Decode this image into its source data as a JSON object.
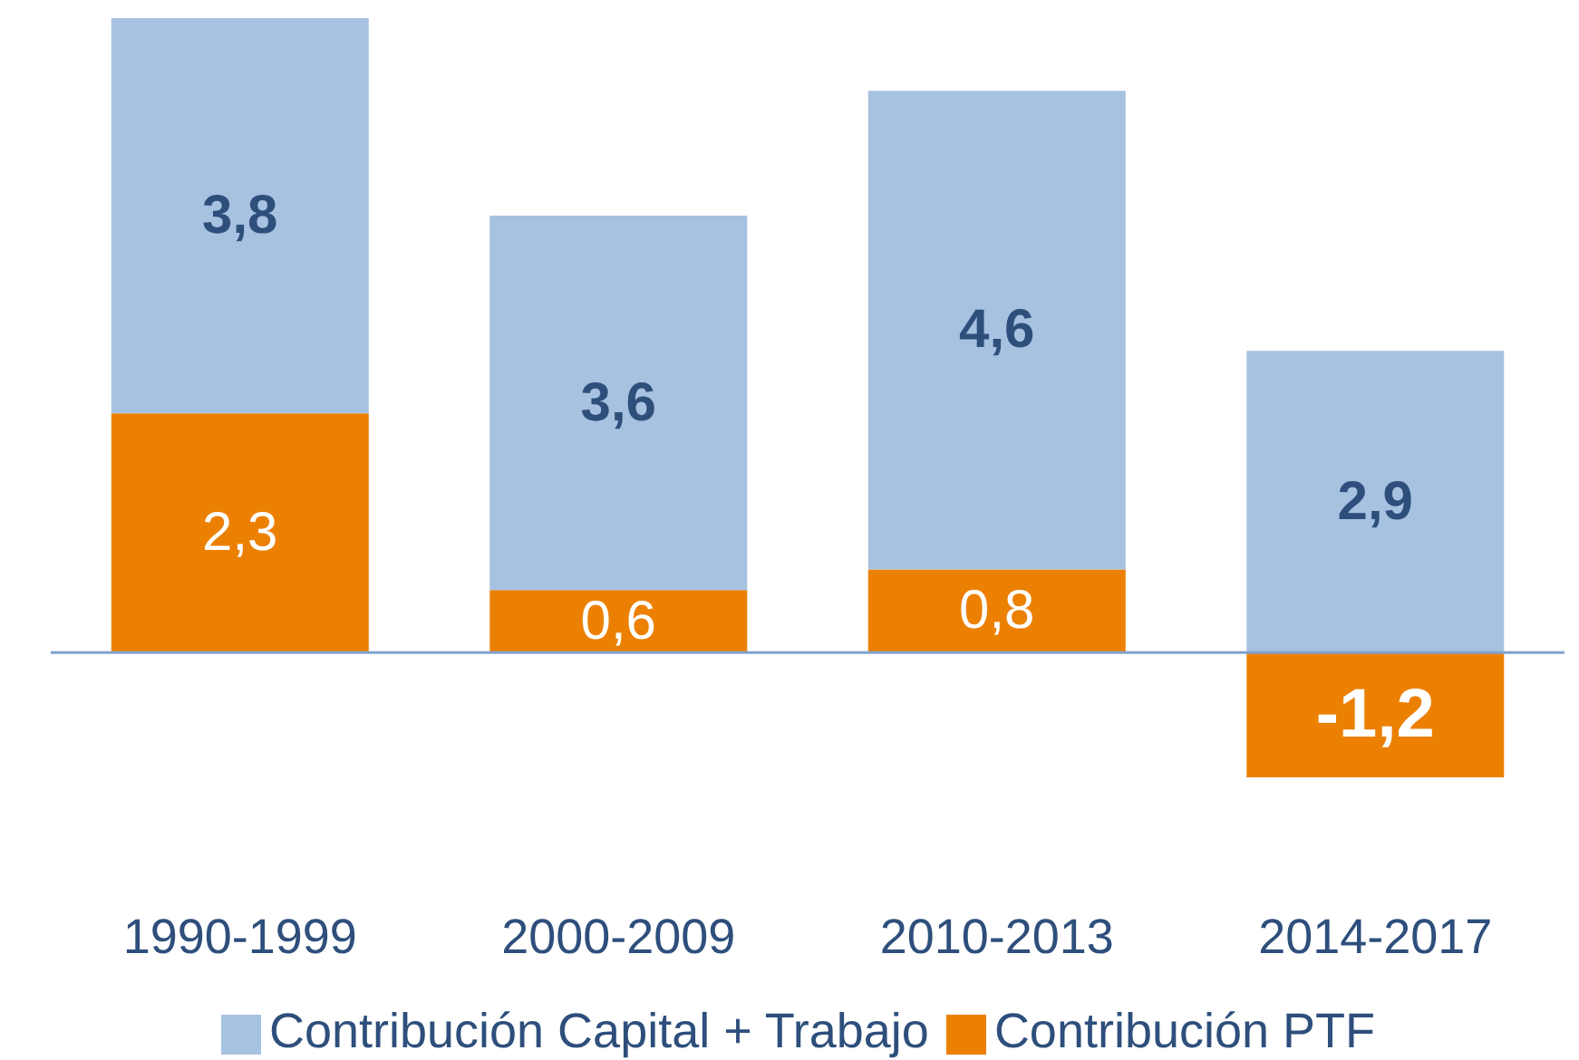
{
  "chart_data": {
    "type": "bar",
    "stacked": true,
    "categories": [
      "1990-1999",
      "2000-2009",
      "2010-2013",
      "2014-2017"
    ],
    "series": [
      {
        "name": "Contribución PTF",
        "color": "#ec8003",
        "values": [
          2.3,
          0.6,
          0.8,
          -1.2
        ],
        "value_labels": [
          "2,3",
          "0,6",
          "0,8",
          "-1,2"
        ]
      },
      {
        "name": "Contribución Capital + Trabajo",
        "color": "#a7c1e0",
        "values": [
          3.8,
          3.6,
          4.6,
          2.9
        ],
        "value_labels": [
          "3,8",
          "3,6",
          "4,6",
          "2,9"
        ]
      }
    ],
    "ref_lines": [
      {
        "axis": "y",
        "value": 0,
        "color": "#7fa3cf"
      }
    ],
    "legend": "bottom",
    "grid": false
  }
}
